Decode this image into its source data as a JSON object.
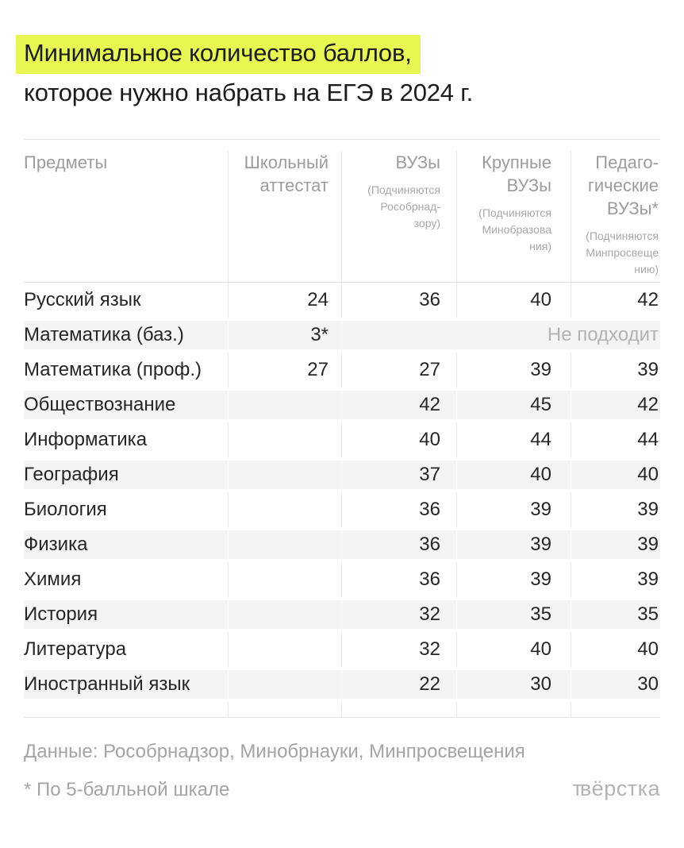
{
  "title": {
    "line1_highlighted": "Минимальное количество баллов,",
    "line2": "которое нужно набрать на ЕГЭ в 2024 г."
  },
  "colors": {
    "highlight": "#e7f651",
    "stripe": "#f6f3f4",
    "grid_line": "#e4e1e2",
    "header_text": "#9e9b9d",
    "body_text": "#262626",
    "muted_text": "#a6a3a4"
  },
  "table": {
    "columns": [
      {
        "label": "Предметы",
        "sublabel": ""
      },
      {
        "label": "Школьный\nаттестат",
        "sublabel": ""
      },
      {
        "label": "ВУЗы",
        "sublabel": "(Подчиняются\nРособрнад-\nзору)"
      },
      {
        "label": "Крупные\nВУЗы",
        "sublabel": "(Подчиняются\nМинобразова\nния)"
      },
      {
        "label": "Педаго-\nгические\nВУЗы*",
        "sublabel": "(Подчиняются\nМинпросвеще\nнию)"
      }
    ],
    "rows": [
      {
        "subject": "Русский язык",
        "school": "24",
        "vuz": "36",
        "large": "40",
        "ped": "42"
      },
      {
        "subject": "Математика (баз.)",
        "school": "3*",
        "note": "Не подходит"
      },
      {
        "subject": "Математика (проф.)",
        "school": "27",
        "vuz": "27",
        "large": "39",
        "ped": "39"
      },
      {
        "subject": "Обществознание",
        "school": "",
        "vuz": "42",
        "large": "45",
        "ped": "42"
      },
      {
        "subject": "Информатика",
        "school": "",
        "vuz": "40",
        "large": "44",
        "ped": "44"
      },
      {
        "subject": "География",
        "school": "",
        "vuz": "37",
        "large": "40",
        "ped": "40"
      },
      {
        "subject": "Биология",
        "school": "",
        "vuz": "36",
        "large": "39",
        "ped": "39"
      },
      {
        "subject": "Физика",
        "school": "",
        "vuz": "36",
        "large": "39",
        "ped": "39"
      },
      {
        "subject": "Химия",
        "school": "",
        "vuz": "36",
        "large": "39",
        "ped": "39"
      },
      {
        "subject": "История",
        "school": "",
        "vuz": "32",
        "large": "35",
        "ped": "35"
      },
      {
        "subject": "Литература",
        "school": "",
        "vuz": "32",
        "large": "40",
        "ped": "40"
      },
      {
        "subject": "Иностранный язык",
        "school": "",
        "vuz": "22",
        "large": "30",
        "ped": "30"
      }
    ]
  },
  "footer": {
    "source": "Данные: Рособрнадзор, Минобрнауки, Минпросвещения",
    "footnote": "* По 5-балльной шкале",
    "logo": "твёрстка"
  },
  "chart_data": {
    "type": "table",
    "title": "Минимальное количество баллов, которое нужно набрать на ЕГЭ в 2024 г.",
    "columns": [
      "Предметы",
      "Школьный аттестат",
      "ВУЗы (Подчиняются Рособрнадзору)",
      "Крупные ВУЗы (Подчиняются Минобразования)",
      "Педагогические ВУЗы* (Подчиняются Минпросвещению)"
    ],
    "rows": [
      [
        "Русский язык",
        24,
        36,
        40,
        42
      ],
      [
        "Математика (баз.)",
        "3*",
        "Не подходит",
        "Не подходит",
        "Не подходит"
      ],
      [
        "Математика (проф.)",
        27,
        27,
        39,
        39
      ],
      [
        "Обществознание",
        null,
        42,
        45,
        42
      ],
      [
        "Информатика",
        null,
        40,
        44,
        44
      ],
      [
        "География",
        null,
        37,
        40,
        40
      ],
      [
        "Биология",
        null,
        36,
        39,
        39
      ],
      [
        "Физика",
        null,
        36,
        39,
        39
      ],
      [
        "Химия",
        null,
        36,
        39,
        39
      ],
      [
        "История",
        null,
        32,
        35,
        35
      ],
      [
        "Литература",
        null,
        32,
        40,
        40
      ],
      [
        "Иностранный язык",
        null,
        22,
        30,
        30
      ]
    ],
    "footnote": "* По 5-балльной шкале",
    "source": "Данные: Рособрнадзор, Минобрнауки, Минпросвещения"
  }
}
